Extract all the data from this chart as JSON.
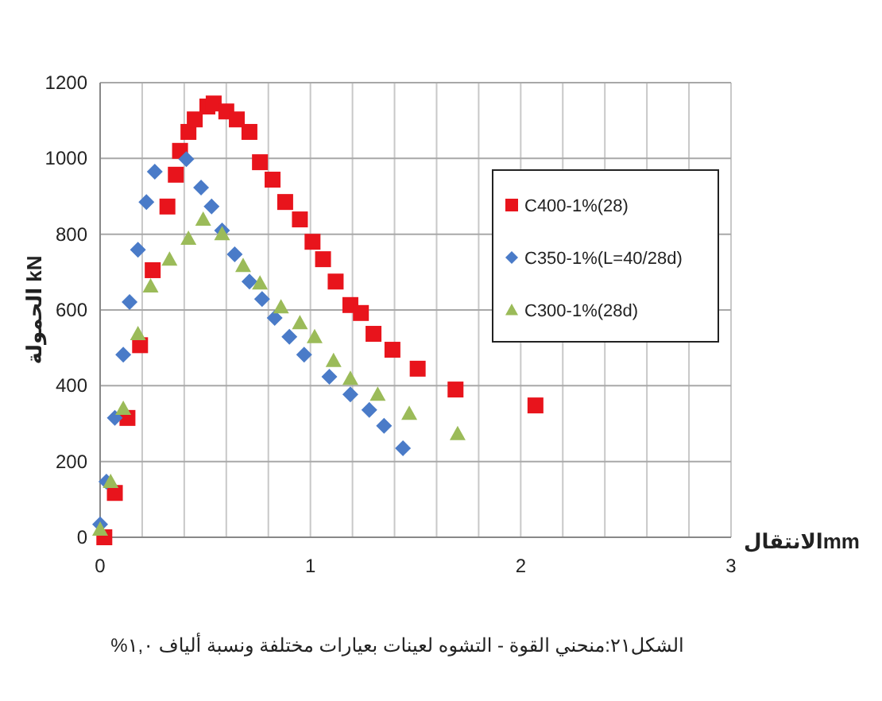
{
  "chart_data": {
    "type": "scatter",
    "xlabel": "الانتقالmm",
    "ylabel": "الحمولة kN",
    "annotations": [
      "الشكل٢١:منحني القوة - التشوه لعينات بعيارات مختلفة ونسبة ألياف ١,٠%"
    ],
    "xlim": [
      0,
      3
    ],
    "ylim": [
      0,
      1200
    ],
    "xticks": [
      0,
      {
        "value": 0.2,
        "label": null
      },
      {
        "value": 0.4,
        "label": null
      },
      {
        "value": 0.6,
        "label": null
      },
      {
        "value": 0.8,
        "label": null
      },
      1,
      {
        "value": 1.2,
        "label": null
      },
      {
        "value": 1.4,
        "label": null
      },
      {
        "value": 1.6,
        "label": null
      },
      {
        "value": 1.8,
        "label": null
      },
      2,
      {
        "value": 2.2,
        "label": null
      },
      {
        "value": 2.4,
        "label": null
      },
      {
        "value": 2.6,
        "label": null
      },
      {
        "value": 2.8,
        "label": null
      },
      3
    ],
    "yticks": [
      0,
      200,
      400,
      600,
      800,
      1000,
      1200
    ],
    "grid": true,
    "legend": "top right",
    "series": [
      {
        "name": "C400-1%(28)",
        "color": "#e8141c",
        "marker": "square",
        "x": [
          0.02,
          0.07,
          0.13,
          0.19,
          0.25,
          0.32,
          0.36,
          0.38,
          0.42,
          0.45,
          0.51,
          0.54,
          0.6,
          0.65,
          0.71,
          0.76,
          0.82,
          0.88,
          0.95,
          1.01,
          1.06,
          1.12,
          1.19,
          1.24,
          1.3,
          1.39,
          1.51,
          1.69,
          2.07
        ],
        "values": [
          0,
          117,
          315,
          507,
          705,
          873,
          957,
          1020,
          1070,
          1103,
          1137,
          1145,
          1124,
          1103,
          1070,
          990,
          944,
          885,
          839,
          780,
          734,
          675,
          613,
          592,
          537,
          495,
          445,
          390,
          348
        ]
      },
      {
        "name": "C350-1%(L=40/28d)",
        "color": "#4a7bc8",
        "marker": "diamond",
        "x": [
          0,
          0.03,
          0.07,
          0.11,
          0.14,
          0.18,
          0.22,
          0.26,
          0.41,
          0.48,
          0.53,
          0.58,
          0.64,
          0.71,
          0.77,
          0.83,
          0.9,
          0.97,
          1.09,
          1.19,
          1.28,
          1.35,
          1.44
        ],
        "values": [
          34,
          147,
          315,
          482,
          621,
          759,
          885,
          965,
          998,
          923,
          873,
          810,
          747,
          675,
          629,
          579,
          529,
          482,
          424,
          377,
          336,
          294,
          235
        ]
      },
      {
        "name": "C300-1%(28d)",
        "color": "#9bbb59",
        "marker": "triangle",
        "x": [
          0,
          0.05,
          0.11,
          0.18,
          0.24,
          0.33,
          0.42,
          0.49,
          0.58,
          0.68,
          0.76,
          0.86,
          0.95,
          1.02,
          1.11,
          1.19,
          1.32,
          1.47,
          1.7
        ],
        "values": [
          21,
          147,
          340,
          537,
          663,
          734,
          789,
          839,
          801,
          717,
          671,
          608,
          566,
          529,
          466,
          419,
          377,
          327,
          273
        ]
      }
    ]
  }
}
